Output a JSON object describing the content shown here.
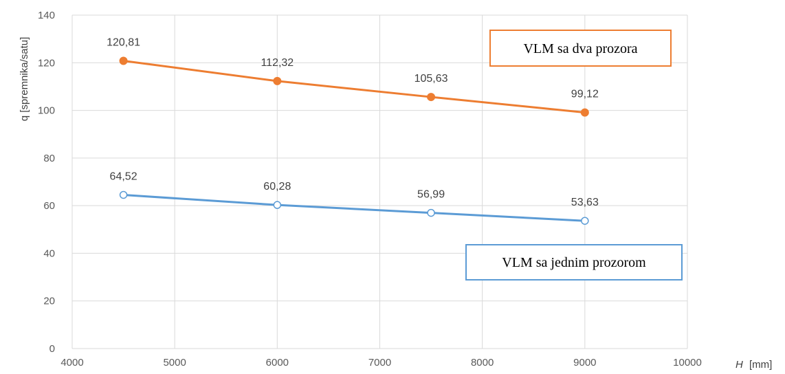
{
  "chart_data": {
    "type": "line",
    "xlabel_var": "H",
    "xlabel_unit": "[mm]",
    "ylabel": "q [spremnika/satu]",
    "xlim": [
      4000,
      10000
    ],
    "ylim": [
      0,
      140
    ],
    "xticks": [
      4000,
      5000,
      6000,
      7000,
      8000,
      9000,
      10000
    ],
    "yticks": [
      0,
      20,
      40,
      60,
      80,
      100,
      120,
      140
    ],
    "grid": true,
    "series": [
      {
        "name": "VLM sa dva prozora",
        "color": "#ED7D31",
        "marker": "filled-circle",
        "x": [
          4500,
          6000,
          7500,
          9000
        ],
        "values": [
          120.81,
          112.32,
          105.63,
          99.12
        ],
        "labels": [
          "120,81",
          "112,32",
          "105,63",
          "99,12"
        ]
      },
      {
        "name": "VLM sa jednim prozorom",
        "color": "#5B9BD5",
        "marker": "hollow-circle",
        "x": [
          4500,
          6000,
          7500,
          9000
        ],
        "values": [
          64.52,
          60.28,
          56.99,
          53.63
        ],
        "labels": [
          "64,52",
          "60,28",
          "56,99",
          "53,63"
        ]
      }
    ]
  }
}
